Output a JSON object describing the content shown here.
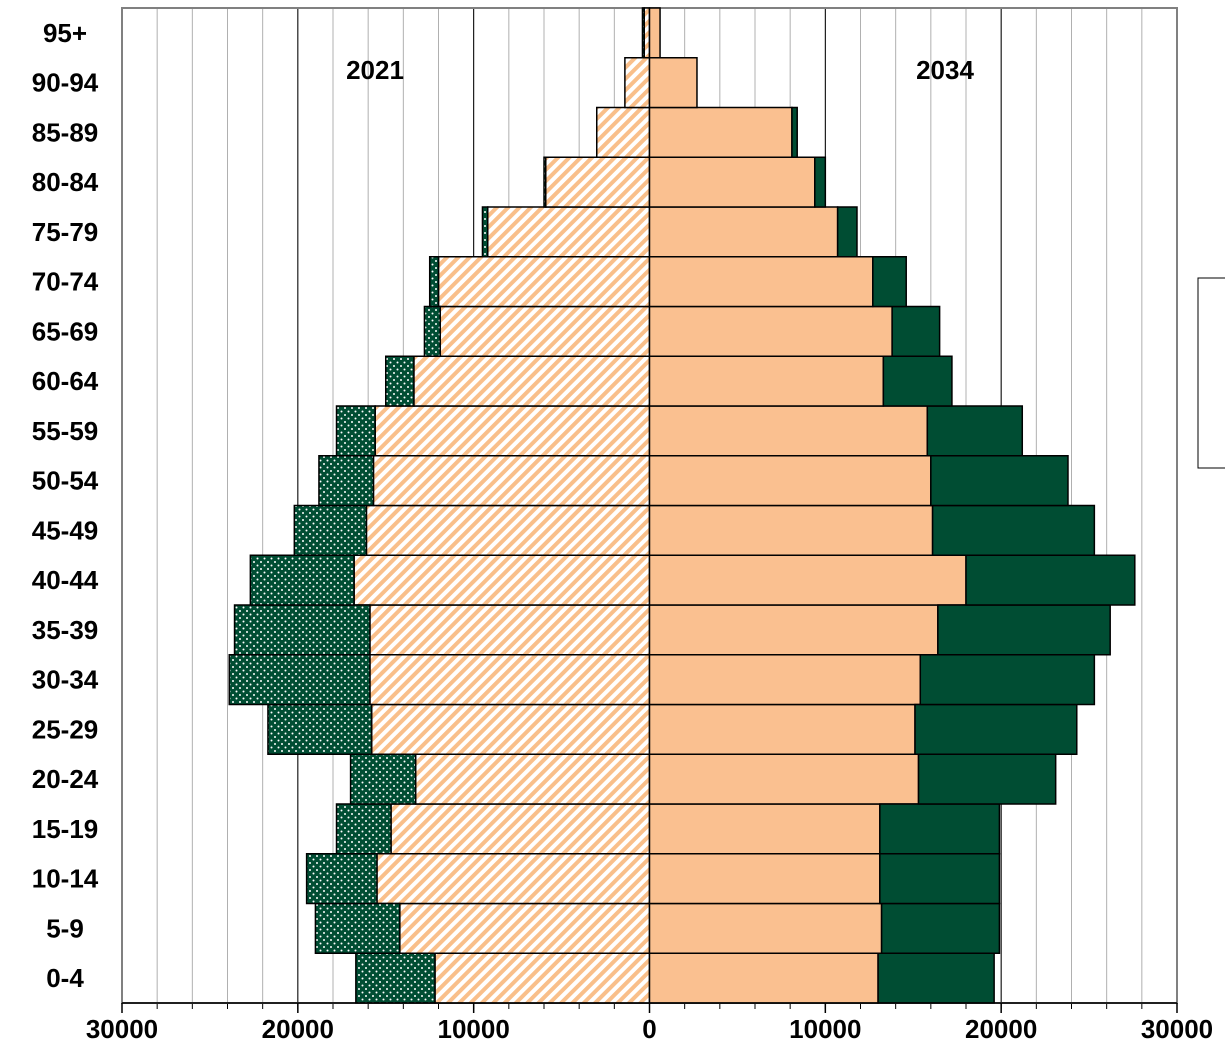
{
  "chart_data": {
    "type": "pyramid",
    "categories": [
      "0-4",
      "5-9",
      "10-14",
      "15-19",
      "20-24",
      "25-29",
      "30-34",
      "35-39",
      "40-44",
      "45-49",
      "50-54",
      "55-59",
      "60-64",
      "65-69",
      "70-74",
      "75-79",
      "80-84",
      "85-89",
      "90-94",
      "95+"
    ],
    "panels": [
      {
        "label": "2021",
        "side": "left",
        "series": [
          {
            "color": "#f9bf8a",
            "pattern": "hatch",
            "values": [
              12200,
              14200,
              15500,
              14700,
              13300,
              15800,
              15900,
              15900,
              16800,
              16100,
              15700,
              15600,
              13400,
              11900,
              12000,
              9200,
              5900,
              3000,
              1400,
              300
            ]
          },
          {
            "color": "#004d33",
            "pattern": "dots",
            "values": [
              4500,
              4800,
              4000,
              3100,
              3700,
              5900,
              8000,
              7700,
              5900,
              4100,
              3100,
              2200,
              1600,
              900,
              500,
              300,
              100,
              0,
              0,
              100
            ]
          }
        ]
      },
      {
        "label": "2034",
        "side": "right",
        "series": [
          {
            "color": "#fac090",
            "pattern": "solid",
            "values": [
              13000,
              13200,
              13100,
              13100,
              15300,
              15100,
              15400,
              16400,
              18000,
              16100,
              16000,
              15800,
              13300,
              13800,
              12700,
              10700,
              9400,
              8100,
              2700,
              600
            ]
          },
          {
            "color": "#004d33",
            "pattern": "solid",
            "values": [
              6600,
              6700,
              6800,
              6800,
              7800,
              9200,
              9900,
              9800,
              9600,
              9200,
              7800,
              5400,
              3900,
              2700,
              1900,
              1100,
              600,
              300,
              0,
              0
            ]
          }
        ]
      }
    ],
    "xlim": [
      -30000,
      30000
    ],
    "xticks": [
      {
        "value": -30000,
        "label": "30000"
      },
      {
        "value": -20000,
        "label": "20000"
      },
      {
        "value": -10000,
        "label": "10000"
      },
      0,
      10000,
      20000,
      30000
    ],
    "xgrid_step": 2000,
    "grid": true
  }
}
